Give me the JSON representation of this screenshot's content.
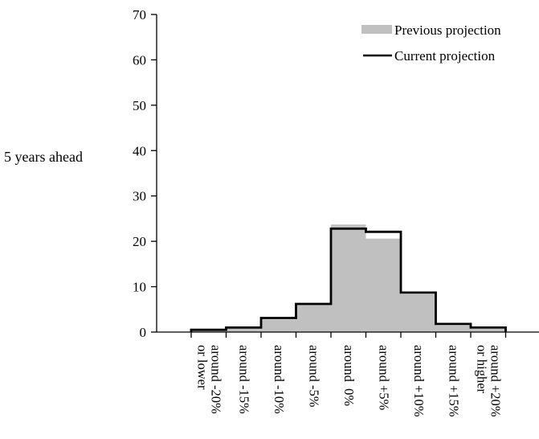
{
  "chart_data": {
    "type": "bar",
    "ylabel": "5 years ahead",
    "xlabel": "",
    "ylim": [
      0,
      70
    ],
    "yticks": [
      0,
      10,
      20,
      30,
      40,
      50,
      60,
      70
    ],
    "categories": [
      [
        "around -20%",
        "or lower"
      ],
      [
        "around -15%"
      ],
      [
        "around -10%"
      ],
      [
        "around -5%"
      ],
      [
        "around  0%"
      ],
      [
        "around +5%"
      ],
      [
        "around +10%"
      ],
      [
        "around +15%"
      ],
      [
        "around +20%",
        "or higher"
      ]
    ],
    "series": [
      {
        "name": "Previous projection",
        "style": "filled-bars",
        "color": "#c0c0c0",
        "values": [
          0.4,
          0.8,
          2.8,
          6.0,
          23.7,
          20.6,
          8.4,
          1.5,
          0.7
        ]
      },
      {
        "name": "Current projection",
        "style": "step-line",
        "color": "#000000",
        "values": [
          0.5,
          1.0,
          3.1,
          6.2,
          22.8,
          22.1,
          8.7,
          1.8,
          1.0
        ]
      }
    ],
    "legend": "top-right",
    "grid": false
  }
}
